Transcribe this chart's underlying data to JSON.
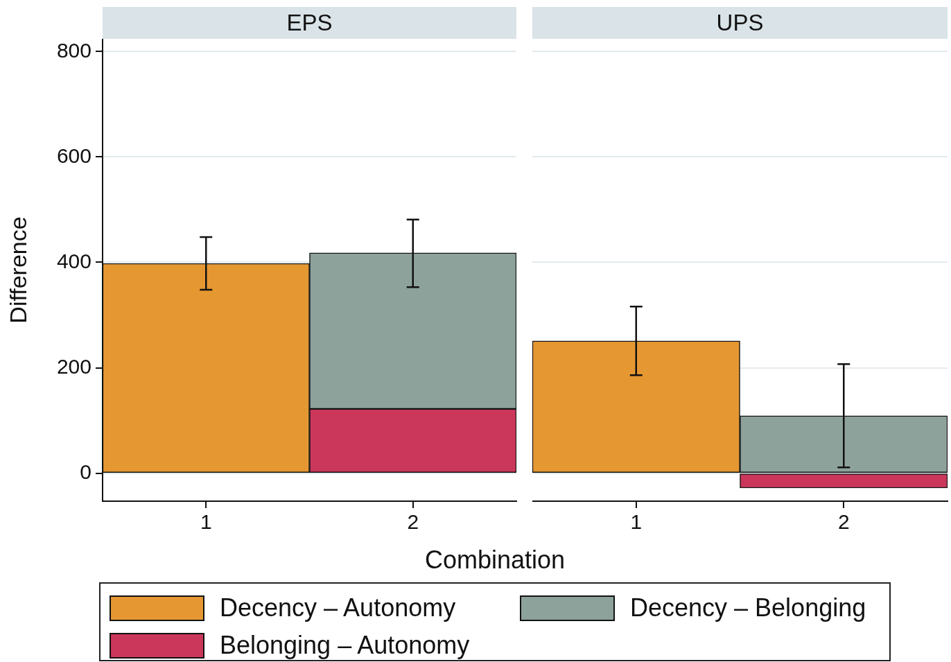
{
  "chart_data": [
    {
      "type": "bar",
      "title": "EPS",
      "xlabel": "Combination",
      "ylabel": "Difference",
      "categories": [
        "1",
        "2"
      ],
      "series": [
        {
          "name": "Decency – Autonomy",
          "color": "#e59832",
          "values": [
            398,
            null
          ],
          "errors": [
            [
              348,
              448
            ],
            null
          ]
        },
        {
          "name": "Belonging – Autonomy",
          "color": "#ca375b",
          "values": [
            null,
            122
          ]
        },
        {
          "name": "Decency – Belonging",
          "color": "#8da29b",
          "values": [
            null,
            296
          ],
          "errors": [
            null,
            [
              353,
              481
            ]
          ]
        }
      ],
      "stacked": true,
      "ylim": [
        -53,
        824
      ],
      "yticks": [
        0,
        200,
        400,
        600,
        800
      ],
      "grid": "y",
      "legend": "bottom"
    },
    {
      "type": "bar",
      "title": "UPS",
      "categories": [
        "1",
        "2"
      ],
      "series": [
        {
          "color": "#e59832",
          "values": [
            251,
            null
          ],
          "errors": [
            [
              186,
              316
            ],
            null
          ]
        },
        {
          "color": "#ca375b",
          "values": [
            null,
            -28
          ]
        },
        {
          "color": "#8da29b",
          "values": [
            null,
            109
          ],
          "errors": [
            null,
            [
              11,
              207
            ]
          ]
        }
      ],
      "stacked": true,
      "yticks": [
        0,
        200,
        400,
        600,
        800
      ],
      "grid": "y",
      "tick_labels": "x"
    }
  ]
}
